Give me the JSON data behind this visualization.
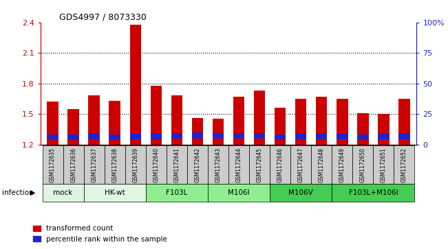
{
  "title": "GDS4997 / 8073330",
  "samples": [
    "GSM1172635",
    "GSM1172636",
    "GSM1172637",
    "GSM1172638",
    "GSM1172639",
    "GSM1172640",
    "GSM1172641",
    "GSM1172642",
    "GSM1172643",
    "GSM1172644",
    "GSM1172645",
    "GSM1172646",
    "GSM1172647",
    "GSM1172648",
    "GSM1172649",
    "GSM1172650",
    "GSM1172651",
    "GSM1172652"
  ],
  "red_values": [
    1.62,
    1.55,
    1.68,
    1.63,
    2.38,
    1.78,
    1.68,
    1.46,
    1.45,
    1.67,
    1.73,
    1.56,
    1.65,
    1.67,
    1.65,
    1.51,
    1.5,
    1.65
  ],
  "blue_heights": [
    0.055,
    0.055,
    0.06,
    0.055,
    0.055,
    0.06,
    0.055,
    0.06,
    0.055,
    0.055,
    0.055,
    0.055,
    0.06,
    0.06,
    0.055,
    0.055,
    0.06,
    0.06
  ],
  "blue_bottoms": [
    1.245,
    1.245,
    1.25,
    1.245,
    1.25,
    1.25,
    1.255,
    1.255,
    1.255,
    1.255,
    1.255,
    1.245,
    1.25,
    1.25,
    1.25,
    1.245,
    1.25,
    1.25
  ],
  "ylim_left": [
    1.2,
    2.4
  ],
  "ylim_right": [
    0,
    100
  ],
  "yticks_left": [
    1.2,
    1.5,
    1.8,
    2.1,
    2.4
  ],
  "yticks_right": [
    0,
    25,
    50,
    75,
    100
  ],
  "ytick_labels_left": [
    "1.2",
    "1.5",
    "1.8",
    "2.1",
    "2.4"
  ],
  "ytick_labels_right": [
    "0",
    "25",
    "50",
    "75",
    "100%"
  ],
  "groups": [
    {
      "label": "mock",
      "start": 0,
      "end": 2,
      "color": "#e0f5e0"
    },
    {
      "label": "HK-wt",
      "start": 2,
      "end": 5,
      "color": "#e0f5e0"
    },
    {
      "label": "F103L",
      "start": 5,
      "end": 8,
      "color": "#90ee90"
    },
    {
      "label": "M106I",
      "start": 8,
      "end": 11,
      "color": "#90ee90"
    },
    {
      "label": "M106V",
      "start": 11,
      "end": 14,
      "color": "#44cc55"
    },
    {
      "label": "F103L+M106I",
      "start": 14,
      "end": 18,
      "color": "#44cc55"
    }
  ],
  "infection_label": "infection",
  "legend_red": "transformed count",
  "legend_blue": "percentile rank within the sample",
  "bar_width": 0.55,
  "red_color": "#cc0000",
  "blue_color": "#2222cc",
  "grid_color": "black",
  "left_tick_color": "#cc0000",
  "right_tick_color": "#2222cc",
  "bar_bottom": 1.2
}
